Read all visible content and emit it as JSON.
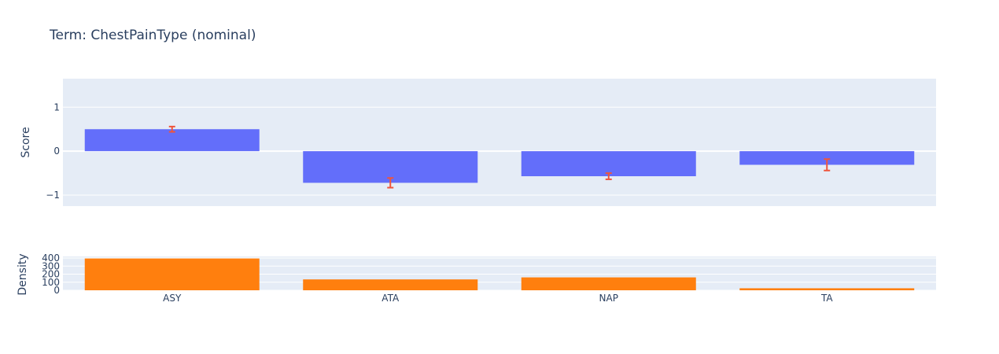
{
  "chart_data": [
    {
      "type": "bar",
      "panel": "score",
      "title": "Term: ChestPainType (nominal)",
      "ylabel": "Score",
      "categories": [
        "ASY",
        "ATA",
        "NAP",
        "TA"
      ],
      "values": [
        0.5,
        -0.72,
        -0.57,
        -0.31
      ],
      "error": [
        0.06,
        0.11,
        0.07,
        0.13
      ],
      "ylim": [
        -1.25,
        1.65
      ],
      "yticks": [
        -1,
        0,
        1
      ],
      "ytick_labels": [
        "−1",
        "0",
        "1"
      ],
      "bar_color": "#636efa",
      "error_color": "#ef553b",
      "grid": true
    },
    {
      "type": "bar",
      "panel": "density",
      "ylabel": "Density",
      "categories": [
        "ASY",
        "ATA",
        "NAP",
        "TA"
      ],
      "values": [
        395,
        135,
        160,
        25
      ],
      "ylim": [
        0,
        420
      ],
      "yticks": [
        0,
        100,
        200,
        300,
        400
      ],
      "ytick_labels": [
        "0",
        "100",
        "200",
        "300",
        "400"
      ],
      "bar_color": "#ff7f0e",
      "grid": true
    }
  ],
  "colors": {
    "plot_bg": "#e5ecf6",
    "grid": "#ffffff",
    "text": "#2a3f5f"
  }
}
